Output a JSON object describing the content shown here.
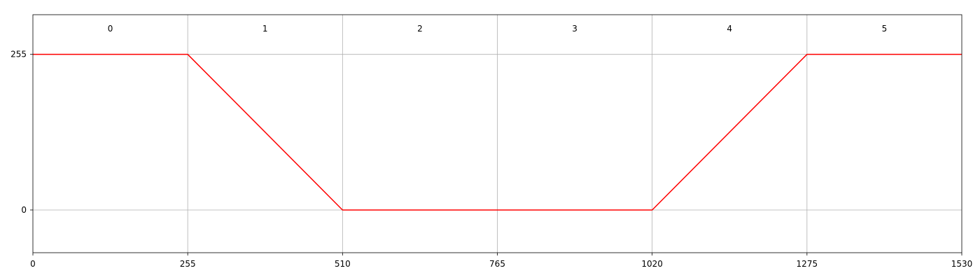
{
  "chart_data": {
    "type": "line",
    "title": "",
    "xlabel": "",
    "ylabel": "",
    "x": [
      0,
      255,
      510,
      765,
      1020,
      1275,
      1530
    ],
    "series": [
      {
        "values": [
          255,
          255,
          0,
          0,
          0,
          255,
          255
        ],
        "color": "#ff0000"
      }
    ],
    "xlim": [
      0,
      1530
    ],
    "ylim": [
      -70,
      320
    ],
    "x_ticks": [
      0,
      255,
      510,
      765,
      1020,
      1275,
      1530
    ],
    "x_tick_labels": [
      "0",
      "255",
      "510",
      "765",
      "1020",
      "1275",
      "1530"
    ],
    "y_ticks": [
      0,
      255
    ],
    "y_tick_labels": [
      "0",
      "255"
    ],
    "segment_labels": [
      "0",
      "1",
      "2",
      "3",
      "4",
      "5"
    ],
    "grid": true,
    "grid_color": "#b0b0b0",
    "axis_color": "#000000"
  }
}
